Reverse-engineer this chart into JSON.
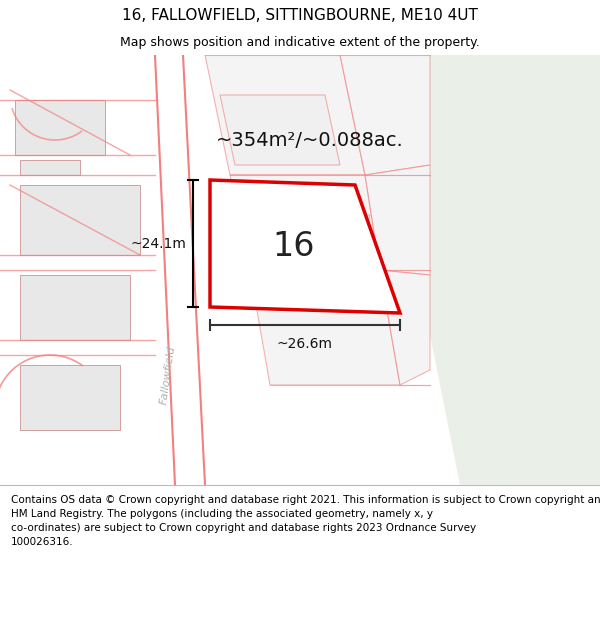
{
  "title": "16, FALLOWFIELD, SITTINGBOURNE, ME10 4UT",
  "subtitle": "Map shows position and indicative extent of the property.",
  "footer": "Contains OS data © Crown copyright and database right 2021. This information is subject to Crown copyright and database rights 2023 and is reproduced with the permission of\nHM Land Registry. The polygons (including the associated geometry, namely x, y\nco-ordinates) are subject to Crown copyright and database rights 2023 Ordnance Survey\n100026316.",
  "map_bg": "#f6f6f4",
  "map_bg_green": "#eaf0e8",
  "road_color": "#f28080",
  "road_fill": "#ffffff",
  "building_fill": "#e8e8e8",
  "building_edge": "#d0a0a0",
  "property_color": "#dd0000",
  "area_text": "~354m²/~0.088ac.",
  "height_text": "~24.1m",
  "width_text": "~26.6m",
  "label_text": "16",
  "road_label": "Fallowfield",
  "title_fontsize": 11,
  "subtitle_fontsize": 9,
  "footer_fontsize": 7.5,
  "map_border_color": "#cccccc"
}
